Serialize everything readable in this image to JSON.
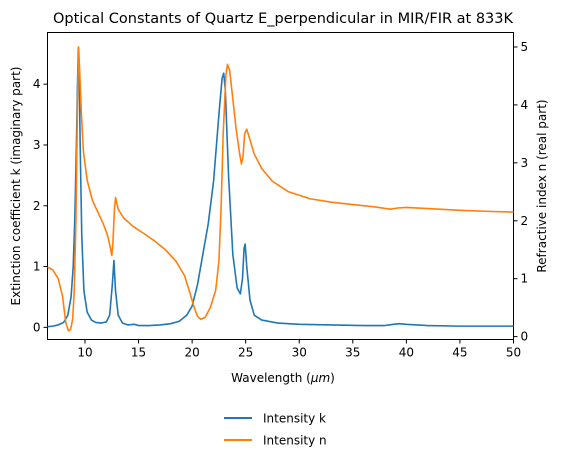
{
  "chart_data": {
    "type": "line",
    "title": "Optical Constants of Quartz E_perpendicular in MIR/FIR at 833K",
    "xlabel_text": "Wavelength (",
    "xlabel_unit": "μm",
    "xlabel_close": ")",
    "ylabel_left": "Extinction coefficient k (imaginary part)",
    "ylabel_right": "Refractive index n (real part)",
    "xlim": [
      6.5,
      50
    ],
    "ylim_left": [
      -0.2,
      4.85
    ],
    "ylim_right": [
      -0.05,
      5.25
    ],
    "xticks": [
      10,
      15,
      20,
      25,
      30,
      35,
      40,
      45,
      50
    ],
    "yticks_left": [
      0,
      1,
      2,
      3,
      4
    ],
    "yticks_right": [
      0,
      1,
      2,
      3,
      4,
      5
    ],
    "grid": false,
    "legend_position": "bottom-center (below plot)",
    "series": [
      {
        "name": "Intensity k",
        "axis": "left",
        "color": "#1f77b4",
        "points": [
          [
            6.5,
            0.01
          ],
          [
            7,
            0.02
          ],
          [
            7.5,
            0.04
          ],
          [
            8,
            0.08
          ],
          [
            8.4,
            0.2
          ],
          [
            8.7,
            0.5
          ],
          [
            8.9,
            1.0
          ],
          [
            9.05,
            1.8
          ],
          [
            9.2,
            3.0
          ],
          [
            9.3,
            4.0
          ],
          [
            9.38,
            4.6
          ],
          [
            9.45,
            4.3
          ],
          [
            9.55,
            3.0
          ],
          [
            9.7,
            1.5
          ],
          [
            9.9,
            0.6
          ],
          [
            10.2,
            0.25
          ],
          [
            10.6,
            0.12
          ],
          [
            11,
            0.08
          ],
          [
            11.5,
            0.07
          ],
          [
            12,
            0.09
          ],
          [
            12.3,
            0.2
          ],
          [
            12.55,
            0.7
          ],
          [
            12.7,
            1.1
          ],
          [
            12.85,
            0.6
          ],
          [
            13.1,
            0.2
          ],
          [
            13.5,
            0.07
          ],
          [
            14,
            0.04
          ],
          [
            14.6,
            0.05
          ],
          [
            15,
            0.03
          ],
          [
            16,
            0.03
          ],
          [
            17,
            0.04
          ],
          [
            18,
            0.06
          ],
          [
            18.8,
            0.1
          ],
          [
            19.5,
            0.2
          ],
          [
            20,
            0.35
          ],
          [
            20.5,
            0.7
          ],
          [
            21,
            1.2
          ],
          [
            21.5,
            1.7
          ],
          [
            22,
            2.4
          ],
          [
            22.5,
            3.5
          ],
          [
            22.8,
            4.1
          ],
          [
            22.95,
            4.18
          ],
          [
            23.1,
            3.9
          ],
          [
            23.4,
            2.5
          ],
          [
            23.8,
            1.2
          ],
          [
            24.2,
            0.65
          ],
          [
            24.5,
            0.55
          ],
          [
            24.7,
            0.8
          ],
          [
            24.85,
            1.3
          ],
          [
            24.95,
            1.37
          ],
          [
            25.1,
            1.0
          ],
          [
            25.4,
            0.45
          ],
          [
            25.8,
            0.2
          ],
          [
            26.5,
            0.12
          ],
          [
            28,
            0.07
          ],
          [
            30,
            0.05
          ],
          [
            33,
            0.04
          ],
          [
            36,
            0.03
          ],
          [
            38,
            0.03
          ],
          [
            38.8,
            0.05
          ],
          [
            39.3,
            0.06
          ],
          [
            40,
            0.05
          ],
          [
            42,
            0.03
          ],
          [
            45,
            0.02
          ],
          [
            48,
            0.02
          ],
          [
            50,
            0.02
          ]
        ]
      },
      {
        "name": "Intensity n",
        "axis": "right",
        "color": "#ff7f0e",
        "points": [
          [
            6.5,
            1.2
          ],
          [
            7,
            1.15
          ],
          [
            7.5,
            1.0
          ],
          [
            7.9,
            0.7
          ],
          [
            8.2,
            0.25
          ],
          [
            8.45,
            0.1
          ],
          [
            8.65,
            0.12
          ],
          [
            8.85,
            0.3
          ],
          [
            9.0,
            0.8
          ],
          [
            9.15,
            2.0
          ],
          [
            9.3,
            4.0
          ],
          [
            9.4,
            5.0
          ],
          [
            9.5,
            4.6
          ],
          [
            9.65,
            3.9
          ],
          [
            9.85,
            3.2
          ],
          [
            10.2,
            2.7
          ],
          [
            10.7,
            2.35
          ],
          [
            11.2,
            2.15
          ],
          [
            11.7,
            1.95
          ],
          [
            12.1,
            1.75
          ],
          [
            12.35,
            1.55
          ],
          [
            12.5,
            1.4
          ],
          [
            12.6,
            1.6
          ],
          [
            12.75,
            2.2
          ],
          [
            12.85,
            2.4
          ],
          [
            13.1,
            2.2
          ],
          [
            13.6,
            2.05
          ],
          [
            14.5,
            1.9
          ],
          [
            15.5,
            1.78
          ],
          [
            16.5,
            1.65
          ],
          [
            17.5,
            1.5
          ],
          [
            18.5,
            1.3
          ],
          [
            19.3,
            1.05
          ],
          [
            19.8,
            0.75
          ],
          [
            20.2,
            0.5
          ],
          [
            20.5,
            0.35
          ],
          [
            20.8,
            0.3
          ],
          [
            21.2,
            0.33
          ],
          [
            21.7,
            0.5
          ],
          [
            22.2,
            0.8
          ],
          [
            22.5,
            1.3
          ],
          [
            22.7,
            2.2
          ],
          [
            22.9,
            3.5
          ],
          [
            23.15,
            4.5
          ],
          [
            23.3,
            4.7
          ],
          [
            23.5,
            4.6
          ],
          [
            23.8,
            4.1
          ],
          [
            24.1,
            3.6
          ],
          [
            24.4,
            3.2
          ],
          [
            24.6,
            2.98
          ],
          [
            24.75,
            3.1
          ],
          [
            24.9,
            3.5
          ],
          [
            25.1,
            3.58
          ],
          [
            25.4,
            3.4
          ],
          [
            25.8,
            3.15
          ],
          [
            26.5,
            2.9
          ],
          [
            27.5,
            2.68
          ],
          [
            29,
            2.5
          ],
          [
            31,
            2.38
          ],
          [
            33,
            2.32
          ],
          [
            35,
            2.28
          ],
          [
            37,
            2.24
          ],
          [
            38.5,
            2.2
          ],
          [
            39.2,
            2.22
          ],
          [
            40,
            2.23
          ],
          [
            42,
            2.21
          ],
          [
            45,
            2.18
          ],
          [
            48,
            2.16
          ],
          [
            50,
            2.15
          ]
        ]
      }
    ]
  }
}
